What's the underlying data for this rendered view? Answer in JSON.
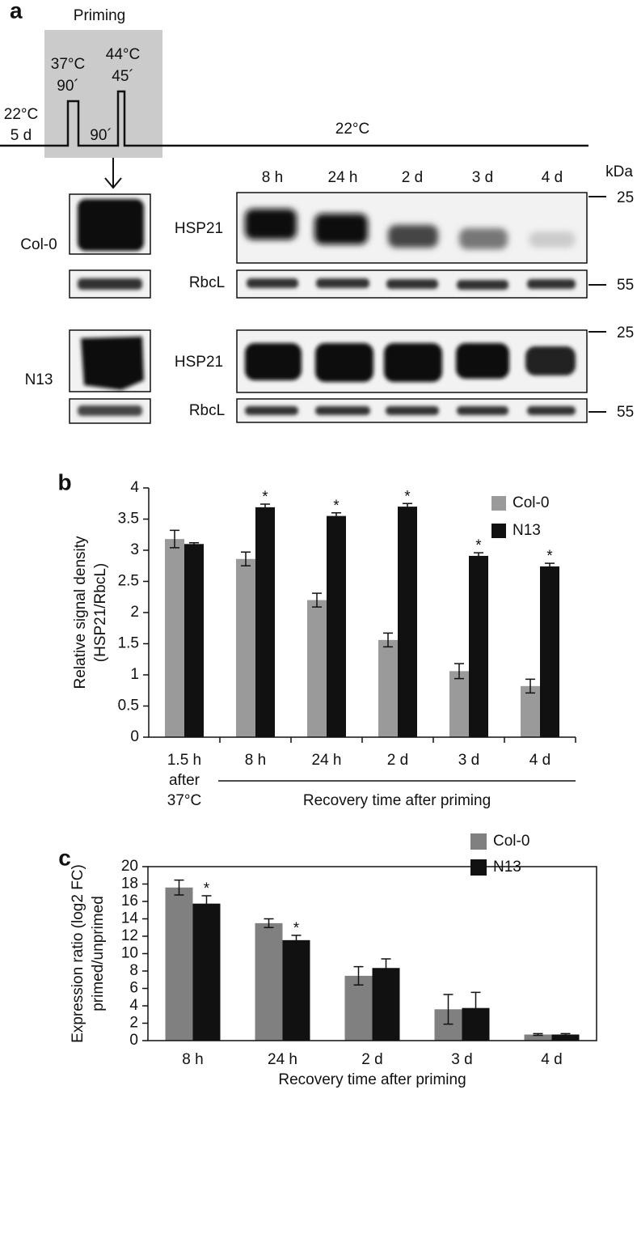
{
  "panel_a": {
    "label": "a",
    "priming": "Priming",
    "timeline": {
      "start_temp": "22°C",
      "start_time": "5 d",
      "pulse1_temp": "37°C",
      "pulse1_time": "90´",
      "gap_time": "90´",
      "pulse2_temp": "44°C",
      "pulse2_time": "45´",
      "recovery_temp": "22°C"
    },
    "lanes": [
      "8 h",
      "24 h",
      "2 d",
      "3 d",
      "4 d"
    ],
    "marker_unit": "kDa",
    "markers": [
      "25",
      "55",
      "25",
      "55"
    ],
    "genotypes": [
      "Col-0",
      "N13"
    ],
    "proteins": [
      "HSP21",
      "RbcL",
      "HSP21",
      "RbcL"
    ]
  },
  "chart_data": [
    {
      "type": "bar",
      "label": "b",
      "ylabel": [
        "Relative signal density",
        "(HSP21/RbcL)"
      ],
      "xlabel": "Recovery time after priming",
      "categories": [
        [
          "1.5 h",
          "after",
          "37°C"
        ],
        "8 h",
        "24 h",
        "2 d",
        "3 d",
        "4 d"
      ],
      "series": [
        {
          "name": "Col-0",
          "color": "#9a9a9a",
          "values": [
            3.18,
            2.86,
            2.2,
            1.56,
            1.06,
            0.82
          ],
          "errors": [
            0.14,
            0.11,
            0.11,
            0.11,
            0.12,
            0.11
          ]
        },
        {
          "name": "N13",
          "color": "#111111",
          "values": [
            3.1,
            3.69,
            3.55,
            3.7,
            2.91,
            2.74
          ],
          "errors": [
            0.02,
            0.05,
            0.05,
            0.05,
            0.05,
            0.05
          ],
          "significance": [
            null,
            "*",
            "*",
            "*",
            "*",
            "*"
          ]
        }
      ],
      "ylim": [
        0,
        4
      ],
      "yticks": [
        0,
        0.5,
        1,
        1.5,
        2,
        2.5,
        3,
        3.5,
        4
      ],
      "legend": "top-right"
    },
    {
      "type": "bar",
      "label": "c",
      "ylabel": [
        "Expression ratio (log2 FC)",
        "primed/unprimed"
      ],
      "xlabel": "Recovery time after priming",
      "categories": [
        "8 h",
        "24 h",
        "2 d",
        "3 d",
        "4 d"
      ],
      "series": [
        {
          "name": "Col-0",
          "color": "#808080",
          "values": [
            17.6,
            13.5,
            7.45,
            3.6,
            0.7
          ],
          "errors": [
            0.85,
            0.5,
            1.05,
            1.7,
            0.1
          ]
        },
        {
          "name": "N13",
          "color": "#111111",
          "values": [
            15.75,
            11.55,
            8.35,
            3.75,
            0.7
          ],
          "errors": [
            0.9,
            0.55,
            1.05,
            1.8,
            0.1
          ],
          "significance": [
            "*",
            "*",
            null,
            null,
            null
          ]
        }
      ],
      "ylim": [
        0,
        20
      ],
      "yticks": [
        0,
        2,
        4,
        6,
        8,
        10,
        12,
        14,
        16,
        18,
        20
      ],
      "legend": "top-right"
    }
  ]
}
